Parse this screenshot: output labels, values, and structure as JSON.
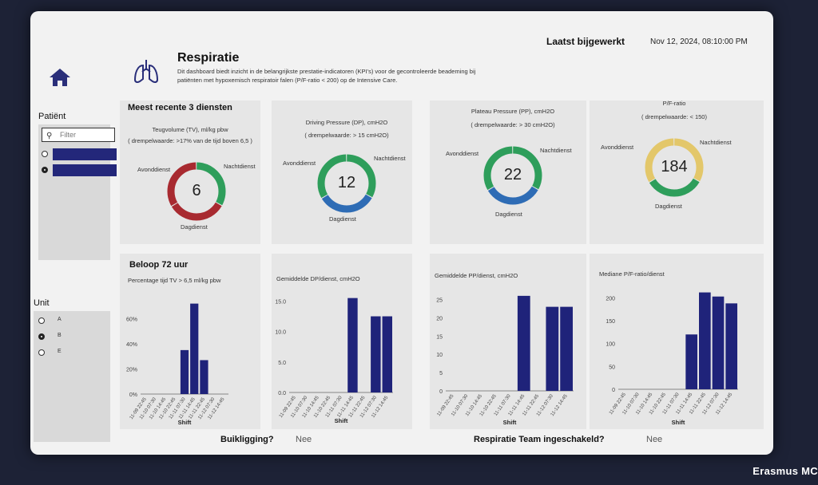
{
  "header": {
    "title": "Respiratie",
    "description": "Dit dashboard biedt inzicht in de belangrijkste prestatie-indicatoren (KPI's) voor de gecontroleerde beademing bij patiënten met hypoxemisch respiratoir falen (P/F-ratio < 200) op de Intensive Care.",
    "updated_label": "Laatst bijgewerkt",
    "updated_value": "Nov 12, 2024, 08:10:00 PM"
  },
  "sidebar": {
    "patient_label": "Patiënt",
    "filter_placeholder": "Filter",
    "unit_label": "Unit",
    "units": [
      "A",
      "B",
      "E"
    ]
  },
  "section1": {
    "title": "Meest recente 3 diensten"
  },
  "kpis": [
    {
      "title": "Teugvolume (TV), ml/kg pbw",
      "sub": "( drempelwaarde: >17% van de tijd boven 6,5 )",
      "value": "6",
      "left": "Avonddienst",
      "right": "Nachtdienst",
      "bottom": "Dagdienst",
      "colors": [
        "#2e9e5b",
        "#a82a30",
        "#a82a30"
      ]
    },
    {
      "title": "Driving Pressure (DP), cmH2O",
      "sub": "( drempelwaarde: > 15 cmH2O)",
      "value": "12",
      "left": "Avonddienst",
      "right": "Nachtdienst",
      "bottom": "Dagdienst",
      "colors": [
        "#2e9e5b",
        "#2e6cb5",
        "#2e9e5b"
      ]
    },
    {
      "title": "Plateau Pressure (PP), cmH2O",
      "sub": "( drempelwaarde: > 30 cmH2O)",
      "value": "22",
      "left": "Avonddienst",
      "right": "Nachtdienst",
      "bottom": "Dagdienst",
      "colors": [
        "#2e9e5b",
        "#2e6cb5",
        "#2e9e5b"
      ]
    },
    {
      "title": "P/F-ratio",
      "sub": "( drempelwaarde: < 150)",
      "value": "184",
      "left": "Avonddienst",
      "right": "Nachtdienst",
      "bottom": "Dagdienst",
      "colors": [
        "#e3c76a",
        "#2e9e5b",
        "#e3c76a"
      ]
    }
  ],
  "section2": {
    "title": "Beloop 72 uur"
  },
  "chart_data": [
    {
      "type": "bar",
      "title": "Percentage tijd TV > 6,5 ml/kg pbw",
      "xlabel": "Shift",
      "ylabel": "",
      "categories": [
        "11-09 22:45",
        "11-10 07:30",
        "11-10 14:45",
        "11-10 22:45",
        "11-11 07:30",
        "11-11 14:45",
        "11-11 22:45",
        "11-12 07:30",
        "11-12 14:45"
      ],
      "values": [
        0,
        0,
        0,
        0,
        35,
        72,
        27,
        0,
        0
      ],
      "ylim": [
        0,
        80
      ],
      "yticks": [
        "0%",
        "20%",
        "40%",
        "60%"
      ],
      "ytick_values": [
        0,
        20,
        40,
        60
      ]
    },
    {
      "type": "bar",
      "title": "Gemiddelde DP/dienst, cmH2O",
      "xlabel": "Shift",
      "ylabel": "",
      "categories": [
        "11-09 22:45",
        "11-10 07:30",
        "11-10 14:45",
        "11-10 22:45",
        "11-11 07:30",
        "11-11 14:45",
        "11-11 22:45",
        "11-12 07:30",
        "11-12 14:45"
      ],
      "values": [
        0,
        0,
        0,
        0,
        0,
        15.5,
        0,
        12.5,
        12.5
      ],
      "ylim": [
        0,
        16.5
      ],
      "yticks": [
        "0.0",
        "5.0",
        "10.0",
        "15.0"
      ],
      "ytick_values": [
        0,
        5,
        10,
        15
      ]
    },
    {
      "type": "bar",
      "title": "Gemiddelde PP/dienst, cmH2O",
      "xlabel": "Shift",
      "ylabel": "",
      "categories": [
        "11-09 22:45",
        "11-10 07:30",
        "11-10 14:45",
        "11-10 22:45",
        "11-11 07:30",
        "11-11 14:45",
        "11-11 22:45",
        "11-12 07:30",
        "11-12 14:45"
      ],
      "values": [
        0,
        0,
        0,
        0,
        0,
        26,
        0,
        23,
        23
      ],
      "ylim": [
        0,
        27.5
      ],
      "yticks": [
        "0",
        "5",
        "10",
        "15",
        "20",
        "25"
      ],
      "ytick_values": [
        0,
        5,
        10,
        15,
        20,
        25
      ]
    },
    {
      "type": "bar",
      "title": "Mediane P/F-ratio/dienst",
      "xlabel": "Shift",
      "ylabel": "",
      "categories": [
        "11-09 22:45",
        "11-10 07:30",
        "11-10 14:45",
        "11-10 22:45",
        "11-11 07:30",
        "11-11 14:45",
        "11-11 22:45",
        "11-12 07:30",
        "11-12 14:45"
      ],
      "values": [
        0,
        0,
        0,
        0,
        0,
        120,
        212,
        203,
        188
      ],
      "ylim": [
        0,
        220
      ],
      "yticks": [
        "0",
        "50",
        "100",
        "150",
        "200"
      ],
      "ytick_values": [
        0,
        50,
        100,
        150,
        200
      ]
    }
  ],
  "footer": {
    "prone_label": "Buikligging?",
    "prone_value": "Nee",
    "team_label": "Respiratie Team ingeschakeld?",
    "team_value": "Nee"
  },
  "brand": "Erasmus MC",
  "colors": {
    "bar": "#1f237a",
    "accent_dark": "#2a2f7a"
  }
}
